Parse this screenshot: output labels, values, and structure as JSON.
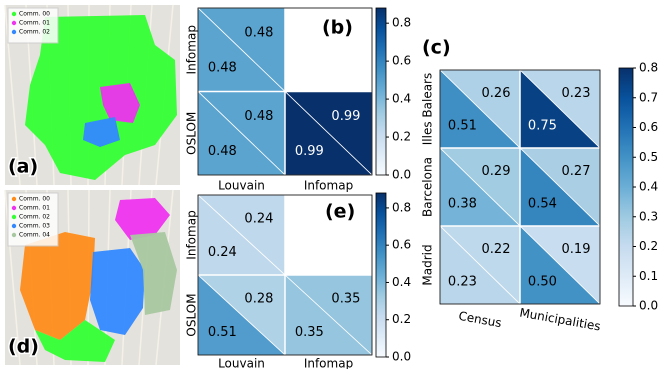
{
  "maps": [
    {
      "label": "(a)",
      "legend": [
        {
          "name": "Comm. 00",
          "color": "#33ff33"
        },
        {
          "name": "Comm. 01",
          "color": "#ee33ee"
        },
        {
          "name": "Comm. 02",
          "color": "#3388ff"
        }
      ]
    },
    {
      "label": "(d)",
      "legend": [
        {
          "name": "Comm. 00",
          "color": "#ff8c1a"
        },
        {
          "name": "Comm. 01",
          "color": "#ee33ee"
        },
        {
          "name": "Comm. 02",
          "color": "#33ff33"
        },
        {
          "name": "Comm. 03",
          "color": "#3388ff"
        },
        {
          "name": "Comm. 04",
          "color": "#a8c8a0"
        }
      ]
    }
  ],
  "chart_data": [
    {
      "type": "heatmap",
      "label": "(b)",
      "x_categories": [
        "Louvain",
        "Infomap"
      ],
      "y_categories": [
        "Infomap",
        "OSLOM"
      ],
      "upper": {
        "values": [
          [
            0.48,
            null
          ],
          [
            0.48,
            0.99
          ]
        ],
        "value_labels": [
          [
            "0.48",
            null
          ],
          [
            "0.48",
            "0.99"
          ]
        ]
      },
      "lower": {
        "values": [
          [
            0.48,
            null
          ],
          [
            0.48,
            0.99
          ]
        ],
        "value_labels": [
          [
            "0.48",
            null
          ],
          [
            "0.48",
            "0.99"
          ]
        ]
      },
      "colormap": "Blues",
      "clim": [
        0,
        0.88
      ],
      "cticks": [
        {
          "value": 0,
          "label": "0.0"
        },
        0.2,
        0.4,
        0.6,
        0.8
      ]
    },
    {
      "type": "heatmap",
      "label": "(e)",
      "x_categories": [
        "Louvain",
        "Infomap"
      ],
      "y_categories": [
        "Infomap",
        "OSLOM"
      ],
      "upper": {
        "values": [
          [
            0.24,
            null
          ],
          [
            0.28,
            0.35
          ]
        ],
        "value_labels": [
          [
            "0.24",
            null
          ],
          [
            "0.28",
            "0.35"
          ]
        ]
      },
      "lower": {
        "values": [
          [
            0.24,
            null
          ],
          [
            0.51,
            0.35
          ]
        ],
        "value_labels": [
          [
            "0.24",
            null
          ],
          [
            "0.51",
            "0.35"
          ]
        ]
      },
      "colormap": "Blues",
      "clim": [
        0,
        0.88
      ],
      "cticks": [
        {
          "value": 0,
          "label": "0.0"
        },
        0.2,
        0.4,
        0.6,
        0.8
      ]
    },
    {
      "type": "heatmap",
      "label": "(c)",
      "x_categories": [
        "Census",
        "Municipalities"
      ],
      "y_categories": [
        "Illes Balears",
        "Barcelona",
        "Madrid"
      ],
      "upper": {
        "values": [
          [
            0.26,
            0.23
          ],
          [
            0.29,
            0.27
          ],
          [
            0.22,
            0.19
          ]
        ],
        "value_labels": [
          [
            "0.26",
            "0.23"
          ],
          [
            "0.29",
            "0.27"
          ],
          [
            "0.22",
            "0.19"
          ]
        ]
      },
      "lower": {
        "values": [
          [
            0.51,
            0.75
          ],
          [
            0.38,
            0.54
          ],
          [
            0.23,
            0.5
          ]
        ],
        "value_labels": [
          [
            "0.51",
            "0.75"
          ],
          [
            "0.38",
            "0.54"
          ],
          [
            "0.23",
            "0.50"
          ]
        ]
      },
      "colormap": "Blues",
      "clim": [
        0,
        0.8
      ],
      "cticks": [
        {
          "value": 0,
          "label": "0.0"
        },
        0.1,
        0.2,
        0.3,
        0.4,
        0.5,
        0.6,
        0.7,
        0.8
      ]
    }
  ]
}
